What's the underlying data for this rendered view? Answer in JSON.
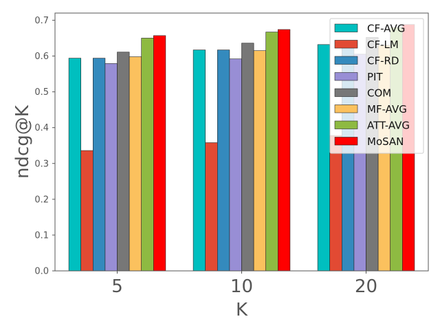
{
  "chart_data": {
    "type": "bar",
    "title": "",
    "xlabel": "K",
    "ylabel": "ndcg@K",
    "categories": [
      "5",
      "10",
      "20"
    ],
    "ylim": [
      0,
      0.72
    ],
    "yticks": [
      "0.0",
      "0.1",
      "0.2",
      "0.3",
      "0.4",
      "0.5",
      "0.6",
      "0.7"
    ],
    "grid": false,
    "legend_position": "top-right",
    "series": [
      {
        "name": "CF-AVG",
        "color": "#00BFBF",
        "values": [
          0.594,
          0.617,
          0.632
        ]
      },
      {
        "name": "CF-LM",
        "color": "#E24A33",
        "values": [
          0.336,
          0.358,
          0.378
        ]
      },
      {
        "name": "CF-RD",
        "color": "#348ABD",
        "values": [
          0.594,
          0.617,
          0.632
        ]
      },
      {
        "name": "PIT",
        "color": "#988ED5",
        "values": [
          0.579,
          0.592,
          0.605
        ]
      },
      {
        "name": "COM",
        "color": "#777777",
        "values": [
          0.611,
          0.636,
          0.652
        ]
      },
      {
        "name": "MF-AVG",
        "color": "#FBC15E",
        "values": [
          0.598,
          0.615,
          0.63
        ]
      },
      {
        "name": "ATT-AVG",
        "color": "#8EBA42",
        "values": [
          0.65,
          0.667,
          0.68
        ]
      },
      {
        "name": "MoSAN",
        "color": "#FF0000",
        "values": [
          0.657,
          0.674,
          0.688
        ]
      }
    ]
  }
}
